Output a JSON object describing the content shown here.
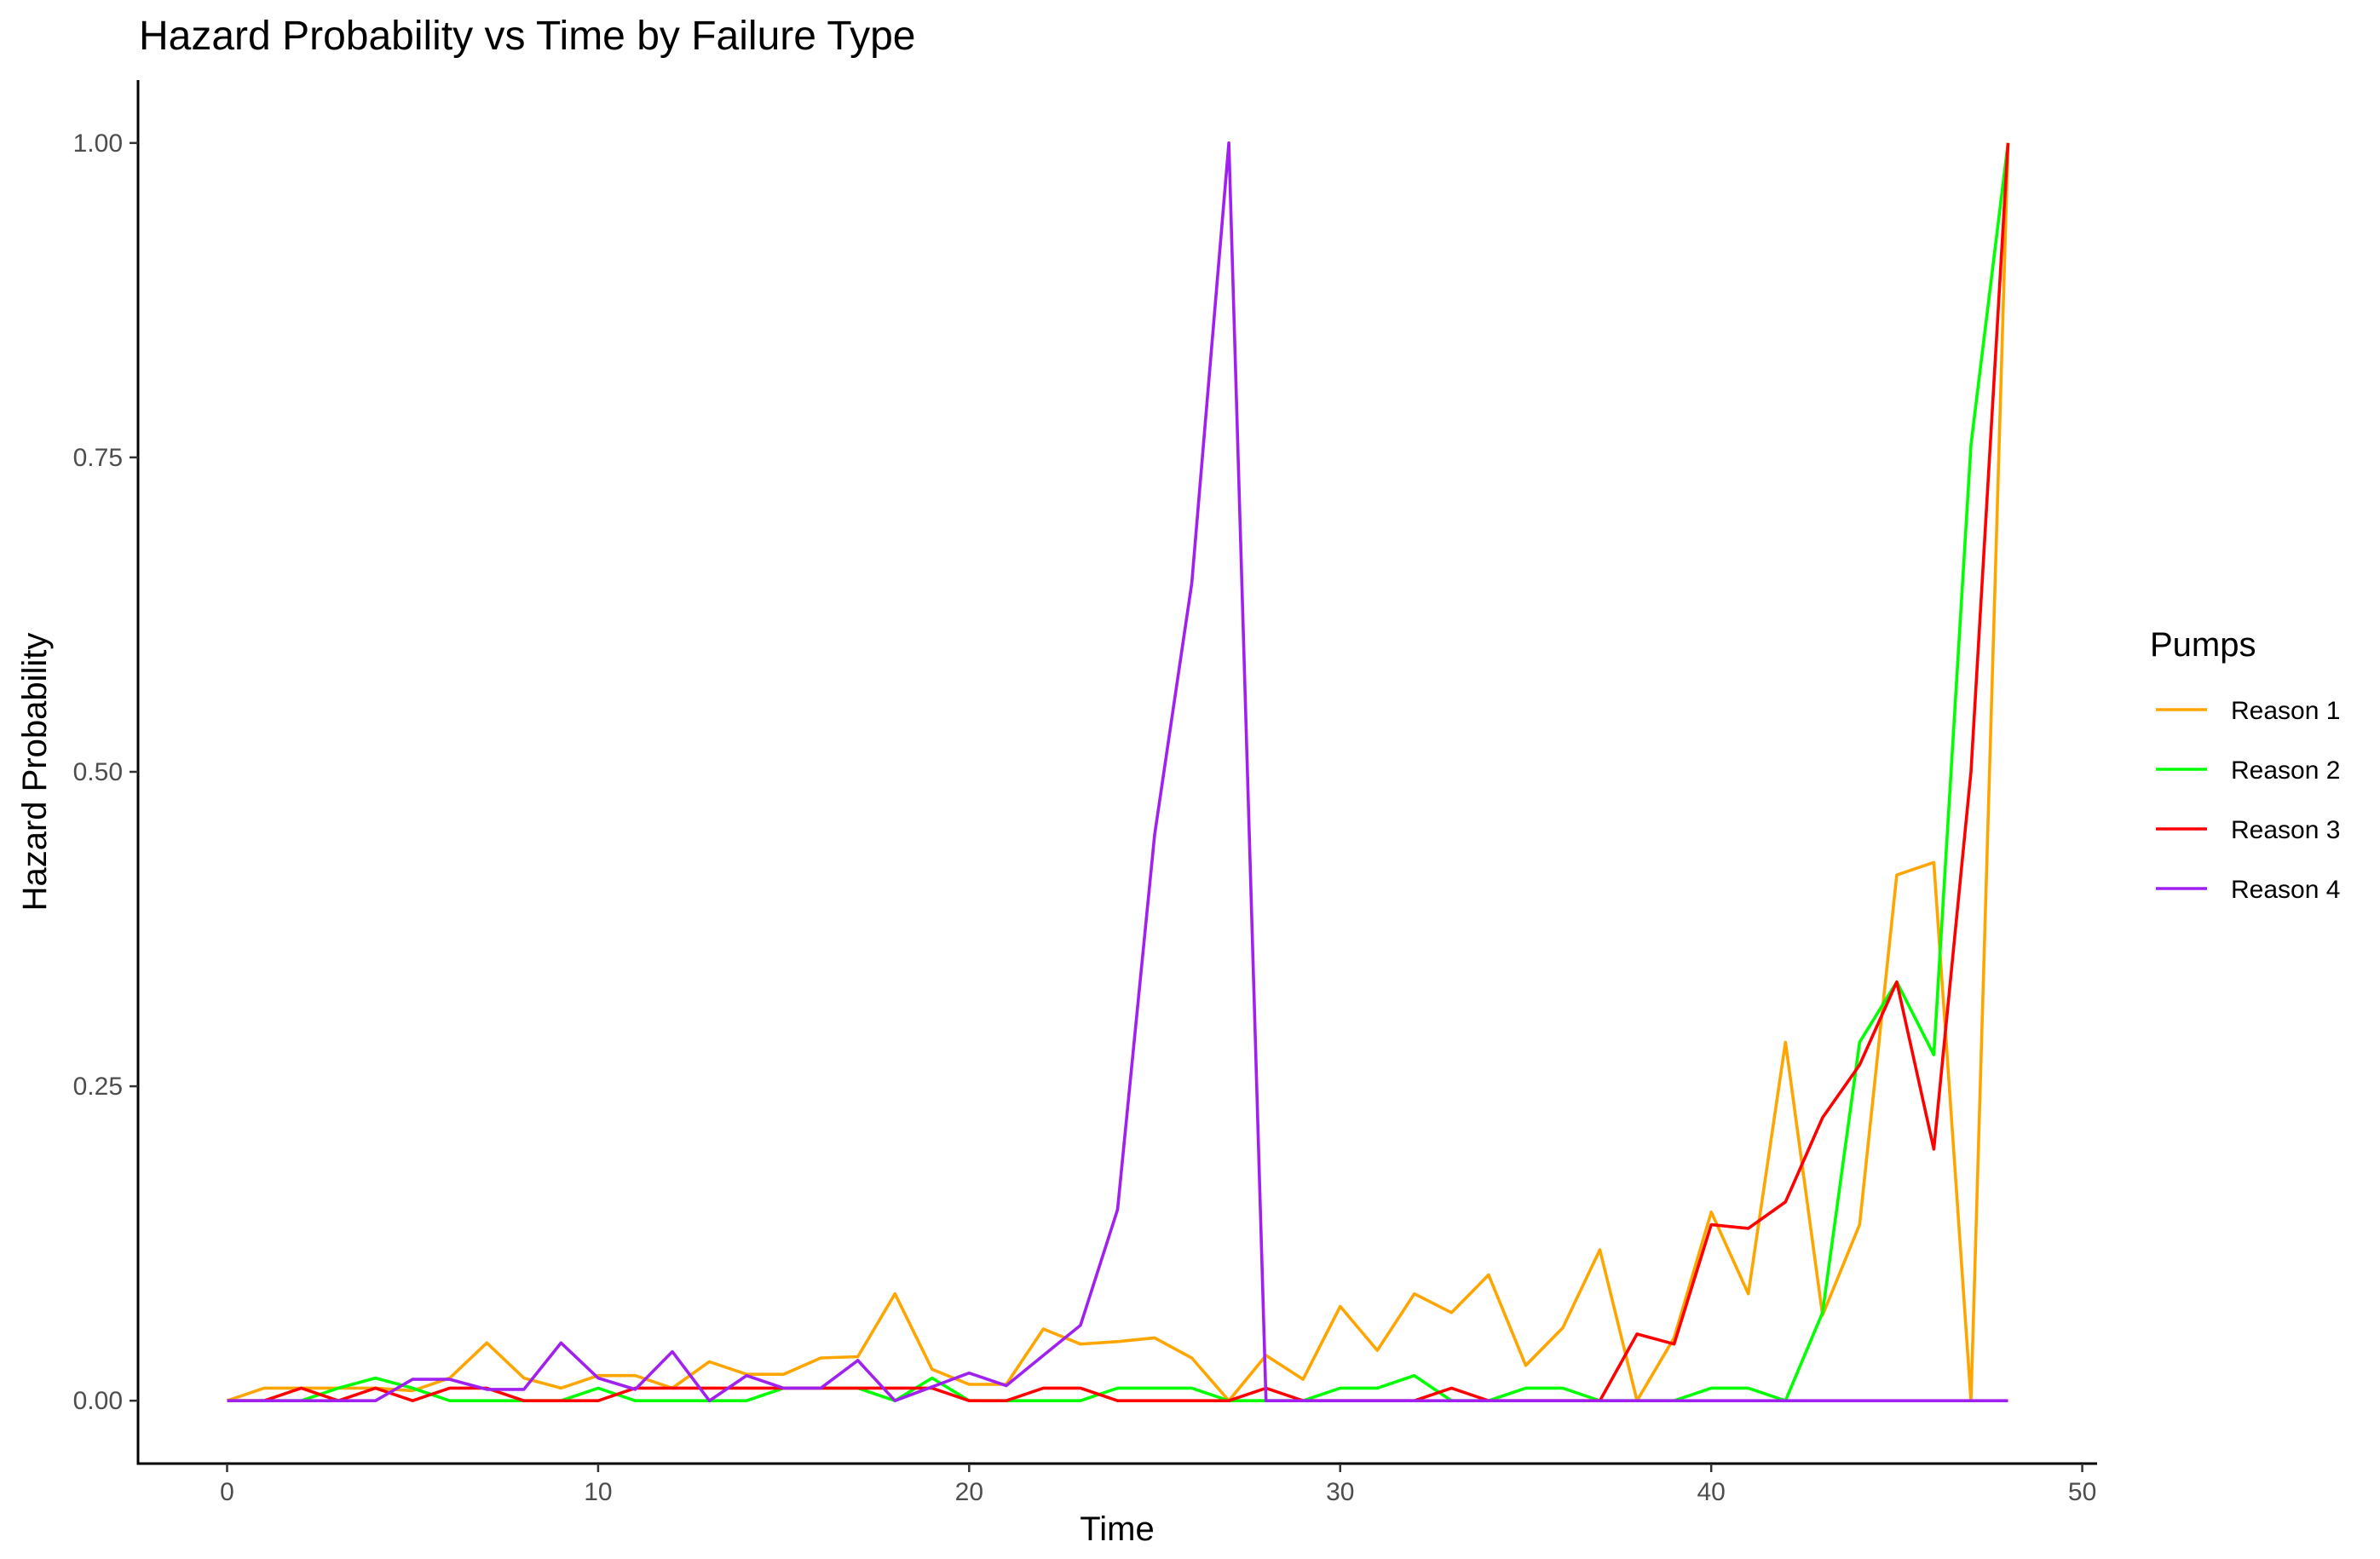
{
  "chart_data": {
    "type": "line",
    "title": "Hazard Probability vs Time by Failure Type",
    "xlabel": "Time",
    "ylabel": "Hazard Probability",
    "xlim": [
      -2.4,
      50.4
    ],
    "ylim": [
      -0.05,
      1.05
    ],
    "x_ticks": [
      0,
      10,
      20,
      30,
      40,
      50
    ],
    "x_tick_labels": [
      "0",
      "10",
      "20",
      "30",
      "40",
      "50"
    ],
    "y_ticks": [
      0,
      0.25,
      0.5,
      0.75,
      1
    ],
    "y_tick_labels": [
      "0.00",
      "0.25",
      "0.50",
      "0.75",
      "1.00"
    ],
    "grid": false,
    "legend": {
      "title": "Pumps",
      "position": "right"
    },
    "x": [
      0,
      1,
      2,
      3,
      4,
      5,
      6,
      7,
      8,
      9,
      10,
      11,
      12,
      13,
      14,
      15,
      16,
      17,
      18,
      19,
      20,
      21,
      22,
      23,
      24,
      25,
      26,
      27,
      28,
      29,
      30,
      31,
      32,
      33,
      34,
      35,
      36,
      37,
      38,
      39,
      40,
      41,
      42,
      43,
      44,
      45,
      46,
      47,
      48
    ],
    "series": [
      {
        "name": "Reason 1",
        "color": "#FFA500",
        "values": [
          0,
          0.01,
          0.01,
          0.01,
          0.01,
          0.008,
          0.018,
          0.046,
          0.018,
          0.01,
          0.02,
          0.02,
          0.01,
          0.031,
          0.021,
          0.021,
          0.034,
          0.035,
          0.085,
          0.025,
          0.013,
          0.013,
          0.057,
          0.045,
          0.047,
          0.05,
          0.034,
          0,
          0.036,
          0.017,
          0.075,
          0.04,
          0.085,
          0.07,
          0.1,
          0.028,
          0.058,
          0.12,
          0,
          0.05,
          0.15,
          0.085,
          0.285,
          0.068,
          0.14,
          0.418,
          0.428,
          0,
          1
        ]
      },
      {
        "name": "Reason 2",
        "color": "#00FF00",
        "values": [
          0,
          0,
          0,
          0.01,
          0.018,
          0.01,
          0,
          0,
          0,
          0,
          0.01,
          0,
          0,
          0,
          0,
          0.01,
          0.01,
          0.01,
          0,
          0.018,
          0,
          0,
          0,
          0,
          0.01,
          0.01,
          0.01,
          0,
          0,
          0,
          0.01,
          0.01,
          0.02,
          0,
          0,
          0.01,
          0.01,
          0,
          0,
          0,
          0.01,
          0.01,
          0,
          0.07,
          0.285,
          0.333,
          0.275,
          0.76,
          1
        ]
      },
      {
        "name": "Reason 3",
        "color": "#FF0000",
        "values": [
          0,
          0,
          0.01,
          0,
          0.01,
          0,
          0.01,
          0.01,
          0,
          0,
          0,
          0.01,
          0.01,
          0.01,
          0.01,
          0.01,
          0.01,
          0.01,
          0.01,
          0.01,
          0,
          0,
          0.01,
          0.01,
          0,
          0,
          0,
          0,
          0.01,
          0,
          0,
          0,
          0,
          0.01,
          0,
          0,
          0,
          0,
          0.053,
          0.045,
          0.14,
          0.137,
          0.158,
          0.225,
          0.267,
          0.333,
          0.2,
          0.5,
          1
        ]
      },
      {
        "name": "Reason 4",
        "color": "#A020F0",
        "values": [
          0,
          0,
          0,
          0,
          0,
          0.017,
          0.017,
          0.009,
          0.009,
          0.046,
          0.018,
          0.009,
          0.039,
          0,
          0.02,
          0.01,
          0.01,
          0.032,
          0,
          0.011,
          0.022,
          0.012,
          0.036,
          0.06,
          0.152,
          0.45,
          0.65,
          1,
          0,
          0,
          0,
          0,
          0,
          0,
          0,
          0,
          0,
          0,
          0,
          0,
          0,
          0,
          0,
          0,
          0,
          0,
          0,
          0,
          0
        ]
      }
    ]
  }
}
